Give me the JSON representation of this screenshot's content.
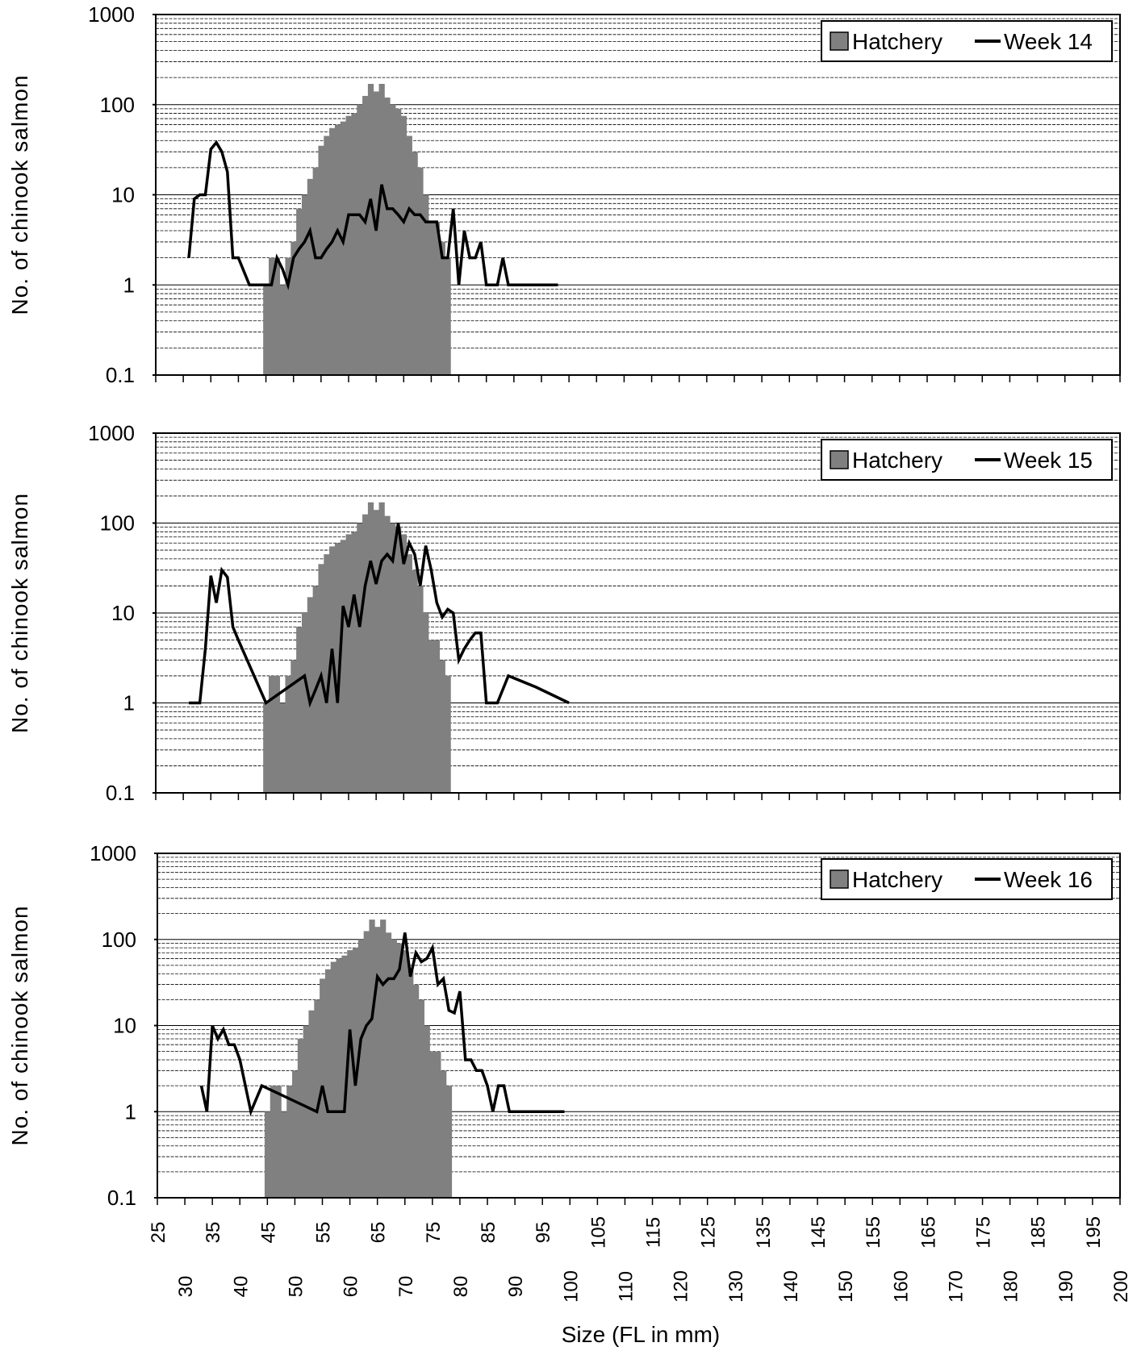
{
  "figure": {
    "x_axis_label": "Size (FL in mm)",
    "x_ticks_upper": [
      "25",
      "35",
      "45",
      "55",
      "65",
      "75",
      "85",
      "95",
      "105",
      "115",
      "125",
      "135",
      "145",
      "155",
      "165",
      "175",
      "185",
      "195"
    ],
    "x_ticks_lower": [
      "30",
      "40",
      "50",
      "60",
      "70",
      "80",
      "90",
      "100",
      "110",
      "120",
      "130",
      "140",
      "150",
      "160",
      "170",
      "180",
      "190",
      "200"
    ]
  },
  "chart_data": [
    {
      "type": "bar+line",
      "ylabel": "No. of chinook salmon",
      "xlabel": "",
      "yscale": "log",
      "ylim": [
        0.1,
        1000
      ],
      "y_tick_labels": [
        "0.1",
        "1",
        "10",
        "100",
        "1000"
      ],
      "xlim": [
        25,
        200
      ],
      "grid": "horizontal log gridlines",
      "legend": "top-right",
      "bar_color": "#808080",
      "line_color": "#000000",
      "series": [
        {
          "name": "Hatchery",
          "kind": "bar",
          "x": [
            45,
            46,
            47,
            48,
            49,
            50,
            51,
            52,
            53,
            54,
            55,
            56,
            57,
            58,
            59,
            60,
            61,
            62,
            63,
            64,
            65,
            66,
            67,
            68,
            69,
            70,
            71,
            72,
            73,
            74,
            75,
            76,
            77,
            78
          ],
          "values": [
            1,
            2,
            2,
            1,
            2,
            3,
            7,
            10,
            15,
            20,
            35,
            45,
            55,
            60,
            65,
            75,
            80,
            100,
            125,
            170,
            140,
            170,
            120,
            100,
            90,
            75,
            45,
            30,
            20,
            10,
            5,
            5,
            3,
            2
          ]
        },
        {
          "name": "Week 14",
          "kind": "line",
          "x": [
            31,
            32,
            33,
            34,
            35,
            36,
            37,
            38,
            39,
            40,
            42,
            44,
            45,
            46,
            47,
            48,
            49,
            50,
            51,
            52,
            53,
            54,
            55,
            56,
            57,
            58,
            59,
            60,
            61,
            62,
            63,
            64,
            65,
            66,
            67,
            68,
            69,
            70,
            71,
            72,
            73,
            74,
            75,
            76,
            77,
            78,
            79,
            80,
            81,
            82,
            83,
            84,
            85,
            86,
            87,
            88,
            89,
            90,
            91,
            92,
            93,
            94,
            95,
            96,
            97,
            98
          ],
          "values": [
            2,
            9,
            10,
            10,
            32,
            38,
            30,
            18,
            2,
            2,
            1,
            1,
            1,
            1,
            2,
            1.5,
            1,
            2,
            2.5,
            3,
            4,
            2,
            2,
            2.5,
            3,
            4,
            3,
            6,
            6,
            6,
            5,
            9,
            4,
            13,
            7,
            7,
            6,
            5,
            7,
            6,
            6,
            5,
            5,
            5,
            2,
            2,
            7,
            1,
            4,
            2,
            2,
            3,
            1,
            1,
            1,
            2,
            1,
            1,
            1,
            1,
            1,
            1,
            1,
            1,
            1,
            1
          ]
        }
      ]
    },
    {
      "type": "bar+line",
      "ylabel": "No. of chinook salmon",
      "xlabel": "",
      "yscale": "log",
      "ylim": [
        0.1,
        1000
      ],
      "y_tick_labels": [
        "0.1",
        "1",
        "10",
        "100",
        "1000"
      ],
      "xlim": [
        25,
        200
      ],
      "grid": "horizontal log gridlines",
      "legend": "top-right",
      "bar_color": "#808080",
      "line_color": "#000000",
      "series": [
        {
          "name": "Hatchery",
          "kind": "bar",
          "x": [
            45,
            46,
            47,
            48,
            49,
            50,
            51,
            52,
            53,
            54,
            55,
            56,
            57,
            58,
            59,
            60,
            61,
            62,
            63,
            64,
            65,
            66,
            67,
            68,
            69,
            70,
            71,
            72,
            73,
            74,
            75,
            76,
            77,
            78
          ],
          "values": [
            1,
            2,
            2,
            1,
            2,
            3,
            7,
            10,
            15,
            20,
            35,
            45,
            55,
            60,
            65,
            75,
            80,
            100,
            125,
            170,
            140,
            170,
            120,
            100,
            90,
            75,
            45,
            30,
            20,
            10,
            5,
            5,
            3,
            2
          ]
        },
        {
          "name": "Week 15",
          "kind": "line",
          "x": [
            31,
            32,
            33,
            34,
            35,
            36,
            37,
            38,
            39,
            40,
            45,
            52,
            53,
            54,
            55,
            56,
            57,
            58,
            59,
            60,
            61,
            62,
            63,
            64,
            65,
            66,
            67,
            68,
            69,
            70,
            71,
            72,
            73,
            74,
            75,
            76,
            77,
            78,
            79,
            80,
            81,
            82,
            83,
            84,
            85,
            86,
            87,
            89,
            94,
            100
          ],
          "values": [
            1,
            1,
            1,
            4,
            26,
            13,
            30,
            25,
            7,
            5,
            1,
            2,
            1,
            1.4,
            2,
            1,
            4,
            1,
            12,
            7,
            16,
            7,
            20,
            38,
            21,
            38,
            45,
            38,
            100,
            35,
            60,
            45,
            20,
            56,
            30,
            13,
            9,
            11,
            10,
            3,
            4,
            5,
            6,
            6,
            1,
            1,
            1,
            2,
            1.5,
            1
          ]
        }
      ]
    },
    {
      "type": "bar+line",
      "ylabel": "No. of chinook salmon",
      "xlabel": "Size (FL in mm)",
      "yscale": "log",
      "ylim": [
        0.1,
        1000
      ],
      "y_tick_labels": [
        "0.1",
        "1",
        "10",
        "100",
        "1000"
      ],
      "xlim": [
        25,
        200
      ],
      "x_tick_labels": [
        "25",
        "30",
        "35",
        "40",
        "45",
        "50",
        "55",
        "60",
        "65",
        "70",
        "75",
        "80",
        "85",
        "90",
        "95",
        "100",
        "105",
        "110",
        "115",
        "120",
        "125",
        "130",
        "135",
        "140",
        "145",
        "150",
        "155",
        "160",
        "165",
        "170",
        "175",
        "180",
        "185",
        "190",
        "195",
        "200"
      ],
      "grid": "horizontal log gridlines",
      "legend": "top-right",
      "bar_color": "#808080",
      "line_color": "#000000",
      "series": [
        {
          "name": "Hatchery",
          "kind": "bar",
          "x": [
            45,
            46,
            47,
            48,
            49,
            50,
            51,
            52,
            53,
            54,
            55,
            56,
            57,
            58,
            59,
            60,
            61,
            62,
            63,
            64,
            65,
            66,
            67,
            68,
            69,
            70,
            71,
            72,
            73,
            74,
            75,
            76,
            77,
            78
          ],
          "values": [
            1,
            2,
            2,
            1,
            2,
            3,
            7,
            10,
            15,
            20,
            35,
            45,
            55,
            60,
            65,
            75,
            80,
            100,
            125,
            170,
            140,
            170,
            120,
            100,
            90,
            75,
            45,
            30,
            20,
            10,
            5,
            5,
            3,
            2
          ]
        },
        {
          "name": "Week 16",
          "kind": "line",
          "x": [
            33,
            34,
            35,
            36,
            37,
            38,
            39,
            40,
            42,
            44,
            54,
            55,
            56,
            57,
            58,
            59,
            60,
            61,
            62,
            63,
            64,
            65,
            66,
            67,
            68,
            69,
            70,
            71,
            72,
            73,
            74,
            75,
            76,
            77,
            78,
            79,
            80,
            81,
            82,
            83,
            84,
            85,
            86,
            87,
            88,
            89,
            99
          ],
          "values": [
            2,
            1,
            10,
            7,
            9,
            6,
            6,
            4,
            1,
            2,
            1,
            2,
            1,
            1,
            1,
            1,
            9,
            2,
            7,
            10,
            12,
            37,
            30,
            35,
            35,
            45,
            120,
            37,
            70,
            55,
            60,
            80,
            30,
            35,
            15,
            14,
            25,
            4,
            4,
            3,
            3,
            2,
            1,
            2,
            2,
            1,
            1
          ]
        }
      ]
    }
  ]
}
